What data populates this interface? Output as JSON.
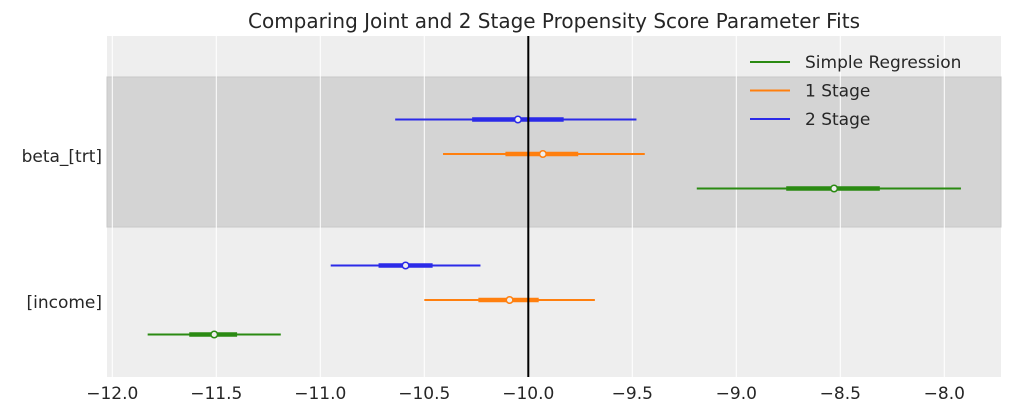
{
  "chart_data": {
    "type": "forest",
    "title": "Comparing Joint and 2 Stage Propensity Score Parameter Fits",
    "xlim": [
      -12.03,
      -7.75
    ],
    "xticks": [
      -12.0,
      -11.5,
      -11.0,
      -10.5,
      -10.0,
      -9.5,
      -9.0,
      -8.5,
      -8.0
    ],
    "xtick_labels": [
      "−12.0",
      "−11.5",
      "−11.0",
      "−10.5",
      "−10.0",
      "−9.5",
      "−9.0",
      "−8.5",
      "−8.0"
    ],
    "reference_line": -10.0,
    "grid": true,
    "legend_placement": "top-right",
    "parameters": [
      "beta_[trt]",
      "[income]"
    ],
    "series": [
      {
        "name": "Simple Regression",
        "color": "#2a8a12",
        "estimates": [
          {
            "median": -8.53,
            "hdi_low": -9.19,
            "hdi_high": -7.92,
            "iqr_low": -8.76,
            "iqr_high": -8.31
          },
          {
            "median": -11.51,
            "hdi_low": -11.83,
            "hdi_high": -11.19,
            "iqr_low": -11.63,
            "iqr_high": -11.4
          }
        ]
      },
      {
        "name": "1 Stage",
        "color": "#ff7f0e",
        "estimates": [
          {
            "median": -9.93,
            "hdi_low": -10.41,
            "hdi_high": -9.44,
            "iqr_low": -10.11,
            "iqr_high": -9.76
          },
          {
            "median": -10.09,
            "hdi_low": -10.5,
            "hdi_high": -9.68,
            "iqr_low": -10.24,
            "iqr_high": -9.95
          }
        ]
      },
      {
        "name": "2 Stage",
        "color": "#2b2ae8",
        "estimates": [
          {
            "median": -10.05,
            "hdi_low": -10.64,
            "hdi_high": -9.48,
            "iqr_low": -10.27,
            "iqr_high": -9.83
          },
          {
            "median": -10.59,
            "hdi_low": -10.95,
            "hdi_high": -10.23,
            "iqr_low": -10.72,
            "iqr_high": -10.46
          }
        ]
      }
    ]
  }
}
